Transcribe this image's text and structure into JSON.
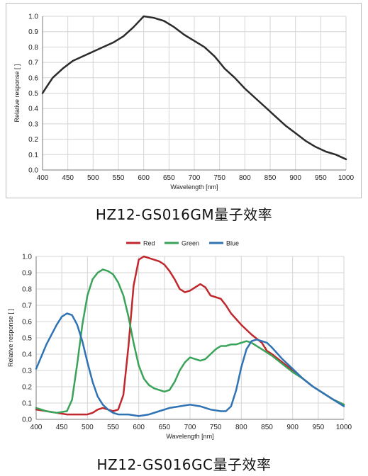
{
  "chart_data": [
    {
      "type": "line",
      "caption": "HZ12-GS016GM量子效率",
      "xlabel": "Wavelength [nm]",
      "ylabel": "Relative response [ ]",
      "xlim": [
        400,
        1000
      ],
      "ylim": [
        0,
        1.0
      ],
      "xticks": [
        "400",
        "450",
        "500",
        "550",
        "600",
        "650",
        "700",
        "750",
        "800",
        "850",
        "900",
        "950",
        "1000"
      ],
      "yticks": [
        "0.0",
        "0.1",
        "0.2",
        "0.3",
        "0.4",
        "0.5",
        "0.6",
        "0.7",
        "0.8",
        "0.9",
        "1.0"
      ],
      "grid": true,
      "legend": "none",
      "series": [
        {
          "color": "#2b2b2b",
          "x": [
            400,
            410,
            420,
            440,
            460,
            480,
            500,
            520,
            540,
            560,
            580,
            600,
            620,
            640,
            660,
            680,
            700,
            720,
            740,
            750,
            760,
            780,
            800,
            820,
            840,
            860,
            880,
            900,
            920,
            940,
            960,
            980,
            1000
          ],
          "y": [
            0.5,
            0.55,
            0.6,
            0.66,
            0.71,
            0.74,
            0.77,
            0.8,
            0.83,
            0.87,
            0.93,
            1.0,
            0.99,
            0.97,
            0.93,
            0.88,
            0.84,
            0.8,
            0.74,
            0.7,
            0.66,
            0.6,
            0.53,
            0.47,
            0.41,
            0.35,
            0.29,
            0.24,
            0.19,
            0.15,
            0.12,
            0.1,
            0.07
          ]
        }
      ]
    },
    {
      "type": "line",
      "caption": "HZ12-GS016GC量子效率",
      "xlabel": "Wavelength [nm]",
      "ylabel": "Relative response [ ]",
      "xlim": [
        400,
        1000
      ],
      "ylim": [
        0,
        1.0
      ],
      "xticks": [
        "400",
        "450",
        "500",
        "550",
        "600",
        "650",
        "700",
        "750",
        "800",
        "850",
        "900",
        "950",
        "1000"
      ],
      "yticks": [
        "0.0",
        "0.1",
        "0.2",
        "0.3",
        "0.4",
        "0.5",
        "0.6",
        "0.7",
        "0.8",
        "0.9",
        "1.0"
      ],
      "grid": true,
      "legend": "top",
      "series": [
        {
          "name": "Red",
          "color": "#c0282d",
          "x": [
            400,
            420,
            440,
            460,
            480,
            500,
            510,
            520,
            530,
            540,
            550,
            560,
            570,
            580,
            590,
            600,
            610,
            620,
            640,
            650,
            660,
            670,
            680,
            690,
            700,
            710,
            720,
            730,
            740,
            750,
            760,
            770,
            780,
            800,
            820,
            840,
            850,
            860,
            880,
            900,
            920,
            940,
            960,
            980,
            1000
          ],
          "y": [
            0.06,
            0.05,
            0.04,
            0.03,
            0.03,
            0.03,
            0.04,
            0.06,
            0.07,
            0.06,
            0.05,
            0.06,
            0.15,
            0.45,
            0.82,
            0.98,
            1.0,
            0.99,
            0.97,
            0.95,
            0.91,
            0.86,
            0.8,
            0.78,
            0.79,
            0.81,
            0.83,
            0.81,
            0.76,
            0.75,
            0.74,
            0.7,
            0.65,
            0.58,
            0.52,
            0.47,
            0.42,
            0.4,
            0.35,
            0.3,
            0.25,
            0.2,
            0.16,
            0.12,
            0.09
          ]
        },
        {
          "name": "Green",
          "color": "#3aa35a",
          "x": [
            400,
            420,
            440,
            460,
            470,
            480,
            490,
            500,
            510,
            520,
            530,
            540,
            550,
            560,
            570,
            580,
            590,
            600,
            610,
            620,
            630,
            640,
            650,
            660,
            670,
            680,
            690,
            700,
            710,
            720,
            730,
            740,
            750,
            760,
            770,
            780,
            790,
            800,
            810,
            820,
            840,
            850,
            860,
            880,
            900,
            920,
            940,
            960,
            980,
            1000
          ],
          "y": [
            0.07,
            0.05,
            0.04,
            0.05,
            0.12,
            0.34,
            0.58,
            0.76,
            0.86,
            0.9,
            0.92,
            0.91,
            0.89,
            0.84,
            0.76,
            0.63,
            0.47,
            0.33,
            0.25,
            0.21,
            0.19,
            0.18,
            0.17,
            0.18,
            0.23,
            0.3,
            0.35,
            0.38,
            0.37,
            0.36,
            0.37,
            0.4,
            0.43,
            0.45,
            0.45,
            0.46,
            0.46,
            0.47,
            0.48,
            0.47,
            0.43,
            0.41,
            0.39,
            0.34,
            0.29,
            0.25,
            0.2,
            0.16,
            0.12,
            0.09
          ]
        },
        {
          "name": "Blue",
          "color": "#2f73b5",
          "x": [
            400,
            420,
            440,
            450,
            460,
            470,
            480,
            490,
            500,
            510,
            520,
            530,
            540,
            550,
            560,
            570,
            580,
            600,
            620,
            640,
            660,
            680,
            700,
            720,
            740,
            760,
            770,
            780,
            790,
            800,
            810,
            820,
            830,
            840,
            850,
            860,
            880,
            900,
            920,
            940,
            960,
            980,
            1000
          ],
          "y": [
            0.31,
            0.46,
            0.58,
            0.63,
            0.65,
            0.64,
            0.58,
            0.48,
            0.35,
            0.23,
            0.14,
            0.09,
            0.06,
            0.04,
            0.03,
            0.03,
            0.03,
            0.02,
            0.03,
            0.05,
            0.07,
            0.08,
            0.09,
            0.08,
            0.06,
            0.05,
            0.05,
            0.08,
            0.18,
            0.32,
            0.43,
            0.48,
            0.49,
            0.48,
            0.47,
            0.44,
            0.37,
            0.31,
            0.25,
            0.2,
            0.16,
            0.12,
            0.08
          ]
        }
      ]
    }
  ]
}
